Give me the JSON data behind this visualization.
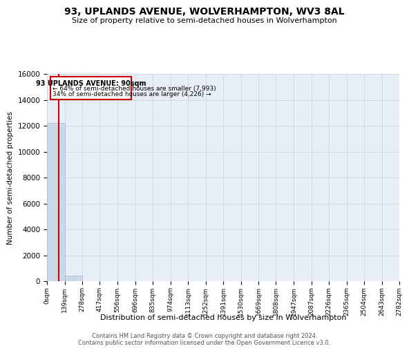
{
  "title": "93, UPLANDS AVENUE, WOLVERHAMPTON, WV3 8AL",
  "subtitle": "Size of property relative to semi-detached houses in Wolverhampton",
  "xlabel": "Distribution of semi-detached houses by size in Wolverhampton",
  "ylabel": "Number of semi-detached properties",
  "property_label": "93 UPLANDS AVENUE: 90sqm",
  "pct_smaller": 64,
  "n_smaller": 7993,
  "pct_larger": 34,
  "n_larger": 4226,
  "bin_edges": [
    0,
    139,
    278,
    417,
    556,
    696,
    835,
    974,
    1113,
    1252,
    1391,
    1530,
    1669,
    1808,
    1947,
    2087,
    2226,
    2365,
    2504,
    2643,
    2782
  ],
  "bar_heights": [
    12219,
    450,
    0,
    0,
    0,
    0,
    0,
    0,
    0,
    0,
    0,
    0,
    0,
    0,
    0,
    0,
    0,
    0,
    0,
    0
  ],
  "bar_color": "#c9d9ea",
  "bar_edgecolor": "#aabcce",
  "vline_color": "#cc0000",
  "vline_x": 90,
  "ylim": [
    0,
    16000
  ],
  "yticks": [
    0,
    2000,
    4000,
    6000,
    8000,
    10000,
    12000,
    14000,
    16000
  ],
  "grid_color": "#cdd8e8",
  "bg_color": "#e8eef6",
  "annotation_box_color": "#cc0000",
  "footnote_line1": "Contains HM Land Registry data © Crown copyright and database right 2024.",
  "footnote_line2": "Contains public sector information licensed under the Open Government Licence v3.0."
}
